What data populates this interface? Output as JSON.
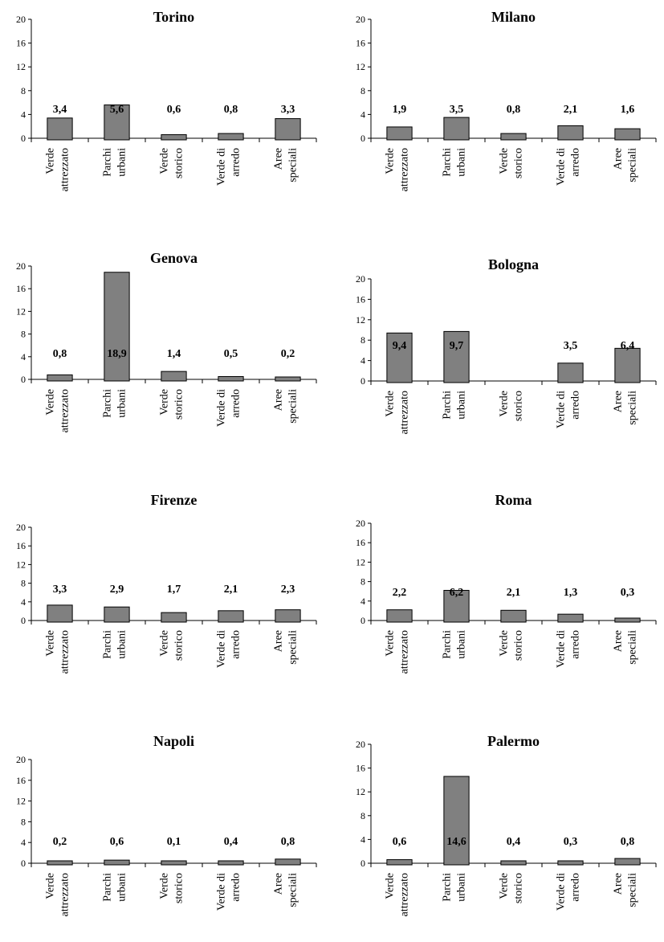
{
  "chart_data": [
    {
      "type": "bar",
      "title": "Torino",
      "categories": [
        [
          "Verde",
          "attrezzato"
        ],
        [
          "Parchi",
          "urbani"
        ],
        [
          "Verde",
          "storico"
        ],
        [
          "Verde di",
          "arredo"
        ],
        [
          "Aree",
          "speciali"
        ]
      ],
      "values": [
        3.4,
        5.6,
        0.6,
        0.8,
        3.3
      ],
      "labels": [
        "3,4",
        "5,6",
        "0,6",
        "0,8",
        "3,3"
      ],
      "yticks": [
        "0",
        "4",
        "8",
        "12",
        "16",
        "20"
      ],
      "ylim": [
        0,
        20
      ],
      "grid": false,
      "bar_color": "#808080"
    },
    {
      "type": "bar",
      "title": "Milano",
      "categories": [
        [
          "Verde",
          "attrezzato"
        ],
        [
          "Parchi",
          "urbani"
        ],
        [
          "Verde",
          "storico"
        ],
        [
          "Verde di",
          "arredo"
        ],
        [
          "Aree",
          "speciali"
        ]
      ],
      "values": [
        1.9,
        3.5,
        0.8,
        2.1,
        1.6
      ],
      "labels": [
        "1,9",
        "3,5",
        "0,8",
        "2,1",
        "1,6"
      ],
      "yticks": [
        "0",
        "4",
        "8",
        "12",
        "16",
        "20"
      ],
      "ylim": [
        0,
        20
      ],
      "grid": false,
      "bar_color": "#808080"
    },
    {
      "type": "bar",
      "title": "Genova",
      "categories": [
        [
          "Verde",
          "attrezzato"
        ],
        [
          "Parchi",
          "urbani"
        ],
        [
          "Verde",
          "storico"
        ],
        [
          "Verde di",
          "arredo"
        ],
        [
          "Aree",
          "speciali"
        ]
      ],
      "values": [
        0.8,
        18.9,
        1.4,
        0.5,
        0.2
      ],
      "labels": [
        "0,8",
        "18,9",
        "1,4",
        "0,5",
        "0,2"
      ],
      "yticks": [
        "0",
        "4",
        "8",
        "12",
        "16",
        "20"
      ],
      "ylim": [
        0,
        20
      ],
      "grid": false,
      "bar_color": "#808080"
    },
    {
      "type": "bar",
      "title": "Bologna",
      "categories": [
        [
          "Verde",
          "attrezzato"
        ],
        [
          "Parchi",
          "urbani"
        ],
        [
          "Verde",
          "storico"
        ],
        [
          "Verde di",
          "arredo"
        ],
        [
          "Aree",
          "speciali"
        ]
      ],
      "values": [
        9.4,
        9.7,
        0,
        3.5,
        6.4
      ],
      "labels": [
        "9,4",
        "9,7",
        "",
        "3,5",
        "6,4"
      ],
      "yticks": [
        "0",
        "4",
        "8",
        "12",
        "16",
        "20"
      ],
      "ylim": [
        0,
        20
      ],
      "grid": false,
      "bar_color": "#808080"
    },
    {
      "type": "bar",
      "title": "Firenze",
      "categories": [
        [
          "Verde",
          "attrezzato"
        ],
        [
          "Parchi",
          "urbani"
        ],
        [
          "Verde",
          "storico"
        ],
        [
          "Verde di",
          "arredo"
        ],
        [
          "Aree",
          "speciali"
        ]
      ],
      "values": [
        3.3,
        2.9,
        1.7,
        2.1,
        2.3
      ],
      "labels": [
        "3,3",
        "2,9",
        "1,7",
        "2,1",
        "2,3"
      ],
      "yticks": [
        "0",
        "4",
        "8",
        "12",
        "16",
        "20"
      ],
      "ylim": [
        0,
        20
      ],
      "grid": false,
      "bar_color": "#808080"
    },
    {
      "type": "bar",
      "title": "Roma",
      "categories": [
        [
          "Verde",
          "attrezzato"
        ],
        [
          "Parchi",
          "urbani"
        ],
        [
          "Verde",
          "storico"
        ],
        [
          "Verde di",
          "arredo"
        ],
        [
          "Aree",
          "speciali"
        ]
      ],
      "values": [
        2.2,
        6.2,
        2.1,
        1.3,
        0.3
      ],
      "labels": [
        "2,2",
        "6,2",
        "2,1",
        "1,3",
        "0,3"
      ],
      "yticks": [
        "0",
        "4",
        "8",
        "12",
        "16",
        "20"
      ],
      "ylim": [
        0,
        20
      ],
      "grid": false,
      "bar_color": "#808080"
    },
    {
      "type": "bar",
      "title": "Napoli",
      "categories": [
        [
          "Verde",
          "attrezzato"
        ],
        [
          "Parchi",
          "urbani"
        ],
        [
          "Verde",
          "storico"
        ],
        [
          "Verde di",
          "arredo"
        ],
        [
          "Aree",
          "speciali"
        ]
      ],
      "values": [
        0.2,
        0.6,
        0.1,
        0.4,
        0.8
      ],
      "labels": [
        "0,2",
        "0,6",
        "0,1",
        "0,4",
        "0,8"
      ],
      "yticks": [
        "0",
        "4",
        "8",
        "12",
        "16",
        "20"
      ],
      "ylim": [
        0,
        20
      ],
      "grid": false,
      "bar_color": "#808080"
    },
    {
      "type": "bar",
      "title": "Palermo",
      "categories": [
        [
          "Verde",
          "attrezzato"
        ],
        [
          "Parchi",
          "urbani"
        ],
        [
          "Verde",
          "storico"
        ],
        [
          "Verde di",
          "arredo"
        ],
        [
          "Aree",
          "speciali"
        ]
      ],
      "values": [
        0.6,
        14.6,
        0.4,
        0.3,
        0.8
      ],
      "labels": [
        "0,6",
        "14,6",
        "0,4",
        "0,3",
        "0,8"
      ],
      "yticks": [
        "0",
        "4",
        "8",
        "12",
        "16",
        "20"
      ],
      "ylim": [
        0,
        20
      ],
      "grid": false,
      "bar_color": "#808080"
    }
  ]
}
